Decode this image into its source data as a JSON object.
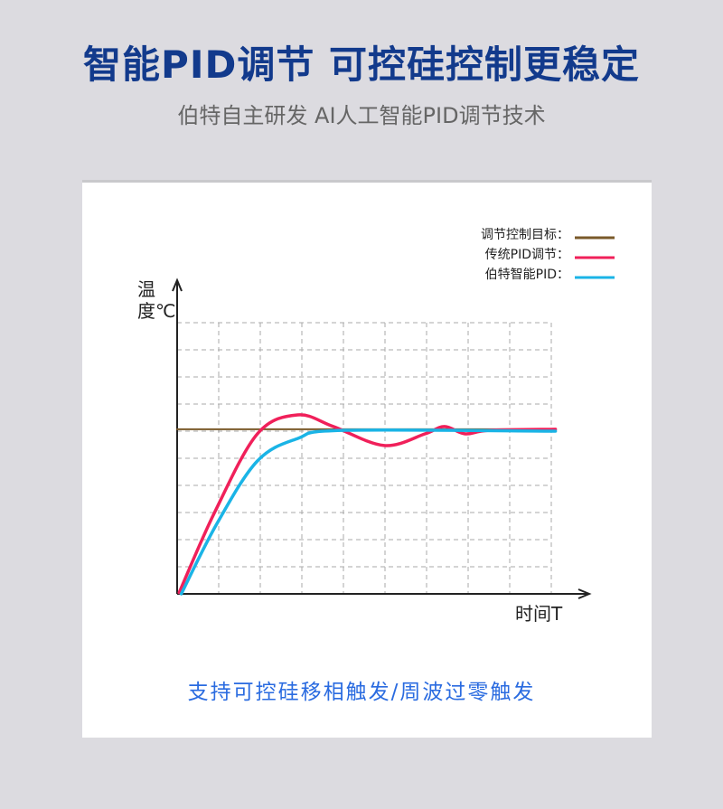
{
  "header": {
    "title": "智能PID调节 可控硅控制更稳定",
    "subtitle": "伯特自主研发  AI人工智能PID调节技术"
  },
  "footer": {
    "text": "支持可控硅移相触发/周波过零触发"
  },
  "chart_data": {
    "type": "line",
    "ylabel": "温度℃",
    "xlabel": "时间T",
    "grid": true,
    "legend_placement": "top-right",
    "xlim": [
      0,
      9
    ],
    "ylim": [
      0,
      10
    ],
    "series": [
      {
        "name": "调节控制目标：",
        "color": "#7a5a2a",
        "x": [
          0,
          9.1
        ],
        "y": [
          6.07,
          6.07
        ]
      },
      {
        "name": "传统PID调节：",
        "color": "#f0205a",
        "x": [
          0.05,
          0.9,
          1.93,
          2.9,
          3.76,
          4.98,
          5.96,
          6.43,
          6.93,
          7.5,
          9.1
        ],
        "y": [
          0.05,
          3.0,
          5.9,
          6.6,
          6.17,
          5.47,
          5.9,
          6.17,
          5.9,
          6.03,
          6.07
        ]
      },
      {
        "name": "伯特智能PID：",
        "color": "#1ab4e6",
        "x": [
          0.1,
          0.95,
          1.93,
          2.9,
          3.98,
          9.1
        ],
        "y": [
          0.0,
          2.57,
          4.9,
          5.73,
          6.03,
          6.0
        ]
      }
    ]
  }
}
